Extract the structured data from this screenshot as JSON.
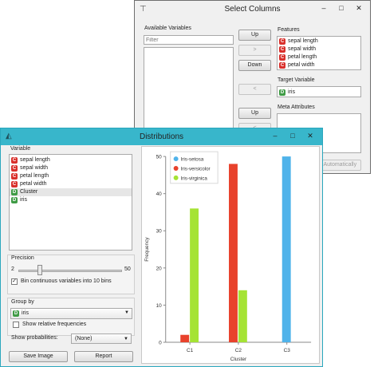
{
  "select_columns": {
    "title": "Select Columns",
    "available_label": "Available Variables",
    "filter_placeholder": "Filter",
    "features_label": "Features",
    "features": [
      "sepal length",
      "sepal width",
      "petal length",
      "petal width"
    ],
    "target_label": "Target Variable",
    "target": "iris",
    "meta_label": "Meta Attributes",
    "btn_up": "Up",
    "btn_right": ">",
    "btn_down": "Down",
    "btn_left": "<",
    "btn_up2": "Up",
    "btn_left2": "<",
    "auto_fragment": "d Automatically"
  },
  "distributions": {
    "title": "Distributions",
    "variable_label": "Variable",
    "variables": [
      {
        "name": "sepal length",
        "type": "C"
      },
      {
        "name": "sepal width",
        "type": "C"
      },
      {
        "name": "petal length",
        "type": "C"
      },
      {
        "name": "petal width",
        "type": "C"
      },
      {
        "name": "Cluster",
        "type": "D",
        "selected": true
      },
      {
        "name": "iris",
        "type": "D"
      }
    ],
    "precision_label": "Precision",
    "precision_min": "2",
    "precision_max": "50",
    "precision_level": 0.21,
    "bin_label": "Bin continuous variables into 10 bins",
    "group_label": "Group by",
    "group_value": "iris",
    "relative_label": "Show relative frequencies",
    "probs_label": "Show probabilities:",
    "probs_value": "(None)",
    "save_label": "Save Image",
    "report_label": "Report"
  },
  "chart_data": {
    "type": "bar",
    "categories": [
      "C1",
      "C2",
      "C3"
    ],
    "series": [
      {
        "name": "Iris-setosa",
        "color": "#4fb3ea",
        "values": [
          0,
          0,
          50
        ]
      },
      {
        "name": "Iris-versicolor",
        "color": "#e8422c",
        "values": [
          2,
          48,
          0
        ]
      },
      {
        "name": "Iris-virginica",
        "color": "#a5e334",
        "values": [
          36,
          14,
          0
        ]
      }
    ],
    "xlabel": "Cluster",
    "ylabel": "Frequency",
    "ylim": [
      0,
      50
    ],
    "yticks": [
      "0",
      "10",
      "20",
      "30",
      "40",
      "50"
    ],
    "legend_position": "top-left",
    "grid": false
  },
  "icons": {
    "window": "orange-widget-icon",
    "minimize": "minimize-icon",
    "maximize": "maximize-icon",
    "close": "close-icon"
  }
}
